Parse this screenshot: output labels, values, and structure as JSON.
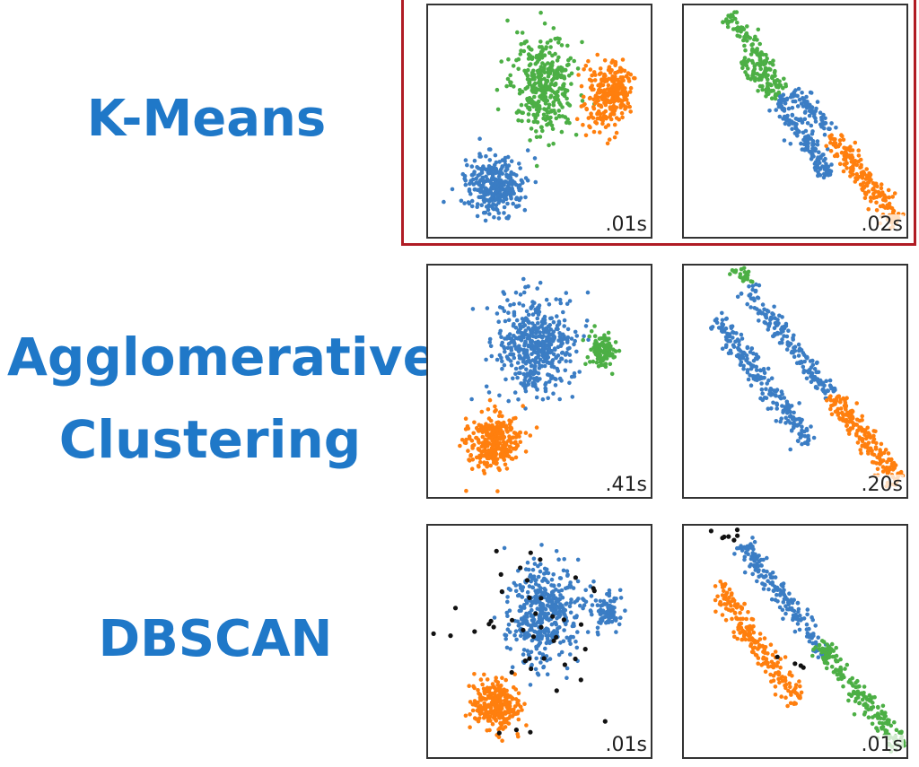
{
  "colors": {
    "label": "#1f78c8",
    "blue": "#3b7dc4",
    "orange": "#ff7f0e",
    "green": "#4caf45",
    "black": "#111111",
    "highlight": "#b01c24"
  },
  "rows": [
    {
      "label_lines": [
        "K-Means"
      ]
    },
    {
      "label_lines": [
        "Agglomerative",
        "Clustering"
      ]
    },
    {
      "label_lines": [
        "DBSCAN"
      ]
    }
  ],
  "chart_data": [
    {
      "type": "scatter",
      "algorithm": "K-Means",
      "dataset": "blobs",
      "time": ".01s",
      "clusters": [
        {
          "color": "blue",
          "center": [
            0.3,
            0.78
          ],
          "spread": [
            0.11,
            0.1
          ],
          "count": 330
        },
        {
          "color": "green",
          "center": [
            0.52,
            0.34
          ],
          "spread": [
            0.12,
            0.18
          ],
          "count": 360
        },
        {
          "color": "orange",
          "center": [
            0.78,
            0.4
          ],
          "spread": [
            0.07,
            0.14
          ],
          "count": 170
        },
        {
          "color": "orange",
          "center": [
            0.86,
            0.36
          ],
          "spread": [
            0.05,
            0.08
          ],
          "count": 110
        }
      ]
    },
    {
      "type": "scatter",
      "algorithm": "K-Means",
      "dataset": "anisotropic",
      "time": ".02s",
      "clusters": [
        {
          "color": "green",
          "line": [
            [
              0.2,
              0.04
            ],
            [
              0.45,
              0.36
            ]
          ],
          "width": 0.035,
          "count": 120
        },
        {
          "color": "green",
          "line": [
            [
              0.26,
              0.24
            ],
            [
              0.42,
              0.4
            ]
          ],
          "width": 0.03,
          "count": 70
        },
        {
          "color": "blue",
          "line": [
            [
              0.42,
              0.4
            ],
            [
              0.66,
              0.74
            ]
          ],
          "width": 0.04,
          "count": 160
        },
        {
          "color": "blue",
          "line": [
            [
              0.5,
              0.36
            ],
            [
              0.66,
              0.56
            ]
          ],
          "width": 0.03,
          "count": 70
        },
        {
          "color": "orange",
          "line": [
            [
              0.66,
              0.56
            ],
            [
              0.97,
              0.94
            ]
          ],
          "width": 0.04,
          "count": 200
        }
      ]
    },
    {
      "type": "scatter",
      "algorithm": "Agglomerative Clustering",
      "dataset": "blobs",
      "time": ".41s",
      "clusters": [
        {
          "color": "blue",
          "center": [
            0.48,
            0.35
          ],
          "spread": [
            0.14,
            0.18
          ],
          "count": 480
        },
        {
          "color": "green",
          "center": [
            0.78,
            0.37
          ],
          "spread": [
            0.05,
            0.06
          ],
          "count": 100
        },
        {
          "color": "orange",
          "center": [
            0.29,
            0.76
          ],
          "spread": [
            0.1,
            0.1
          ],
          "count": 300
        }
      ]
    },
    {
      "type": "scatter",
      "algorithm": "Agglomerative Clustering",
      "dataset": "anisotropic",
      "time": ".20s",
      "clusters": [
        {
          "color": "green",
          "line": [
            [
              0.22,
              0.0
            ],
            [
              0.3,
              0.08
            ]
          ],
          "width": 0.025,
          "count": 25
        },
        {
          "color": "blue",
          "line": [
            [
              0.14,
              0.22
            ],
            [
              0.56,
              0.77
            ]
          ],
          "width": 0.04,
          "count": 220
        },
        {
          "color": "blue",
          "line": [
            [
              0.28,
              0.1
            ],
            [
              0.66,
              0.56
            ]
          ],
          "width": 0.035,
          "count": 180
        },
        {
          "color": "orange",
          "line": [
            [
              0.66,
              0.56
            ],
            [
              0.97,
              0.94
            ]
          ],
          "width": 0.04,
          "count": 200
        }
      ]
    },
    {
      "type": "scatter",
      "algorithm": "DBSCAN",
      "dataset": "blobs",
      "time": ".01s",
      "clusters": [
        {
          "color": "blue",
          "center": [
            0.52,
            0.38
          ],
          "spread": [
            0.13,
            0.17
          ],
          "count": 440
        },
        {
          "color": "blue",
          "center": [
            0.8,
            0.37
          ],
          "spread": [
            0.05,
            0.06
          ],
          "count": 90
        },
        {
          "color": "orange",
          "center": [
            0.3,
            0.78
          ],
          "spread": [
            0.09,
            0.09
          ],
          "count": 280
        },
        {
          "color": "black",
          "center": [
            0.45,
            0.5
          ],
          "spread": [
            0.32,
            0.38
          ],
          "count": 45
        }
      ]
    },
    {
      "type": "scatter",
      "algorithm": "DBSCAN",
      "dataset": "anisotropic",
      "time": ".01s",
      "clusters": [
        {
          "color": "black",
          "line": [
            [
              0.1,
              0.0
            ],
            [
              0.28,
              0.1
            ]
          ],
          "width": 0.05,
          "count": 8
        },
        {
          "color": "blue",
          "line": [
            [
              0.26,
              0.08
            ],
            [
              0.64,
              0.56
            ]
          ],
          "width": 0.04,
          "count": 190
        },
        {
          "color": "orange",
          "line": [
            [
              0.14,
              0.26
            ],
            [
              0.52,
              0.76
            ]
          ],
          "width": 0.045,
          "count": 210
        },
        {
          "color": "green",
          "line": [
            [
              0.6,
              0.5
            ],
            [
              0.98,
              0.96
            ]
          ],
          "width": 0.04,
          "count": 190
        },
        {
          "color": "black",
          "line": [
            [
              0.38,
              0.5
            ],
            [
              0.56,
              0.6
            ]
          ],
          "width": 0.05,
          "count": 4
        }
      ]
    }
  ]
}
